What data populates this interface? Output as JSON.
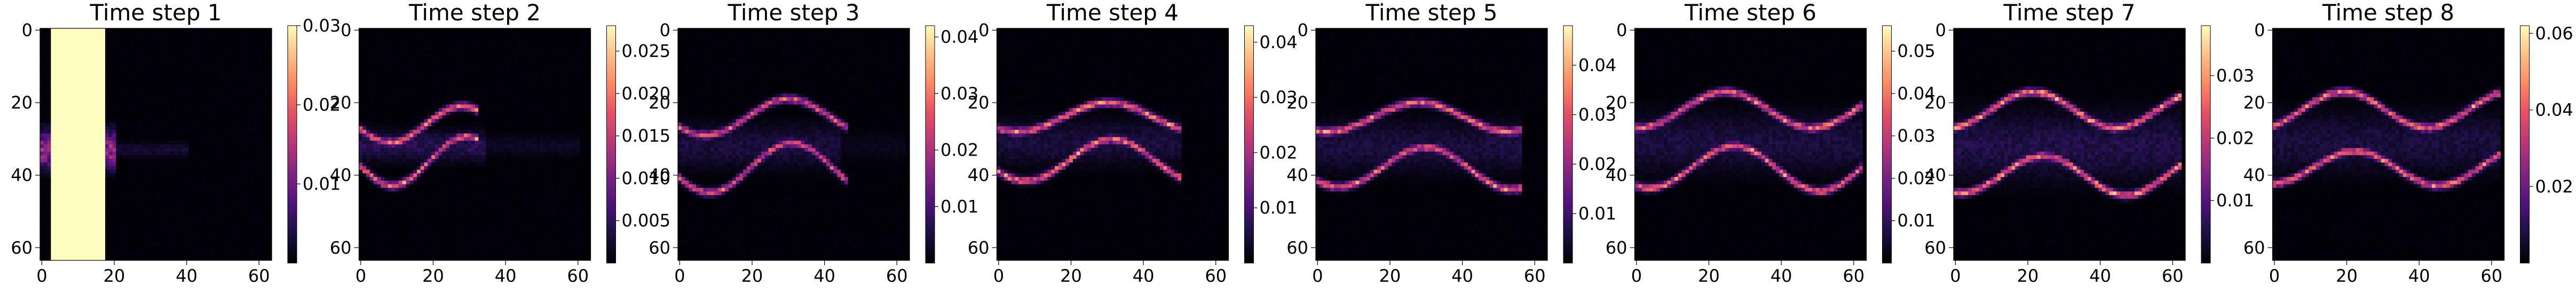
{
  "chart_data": {
    "type": "heatmap",
    "colormap": "magma",
    "grid_size": 64,
    "grid": false,
    "axes": {
      "x_ticks": [
        0,
        20,
        40,
        60
      ],
      "y_ticks": [
        0,
        20,
        40,
        60
      ],
      "x_tick_labels": [
        "0",
        "20",
        "40",
        "60"
      ],
      "y_tick_labels": [
        "0",
        "20",
        "40",
        "60"
      ],
      "x_range": [
        0,
        64
      ],
      "y_range": [
        0,
        64
      ],
      "y_inverted": true
    },
    "panels": [
      {
        "title": "Time step 1",
        "vmax": 0.03,
        "colorbar_ticks": [
          0.01,
          0.02,
          0.03
        ],
        "colorbar_tick_labels": [
          "0.01",
          "0.02",
          "0.03"
        ],
        "features": [
          {
            "kind": "bow",
            "x0": 5,
            "y0": 33,
            "x1": 16,
            "half_height": 5,
            "intensity": 0.95
          },
          {
            "kind": "plume",
            "x0": 0,
            "x1": 20,
            "y": 33,
            "half_height": 5,
            "intensity": 0.55
          },
          {
            "kind": "tail",
            "x0": 16,
            "x1": 40,
            "y": 33,
            "half_height": 2,
            "intensity": 0.12
          }
        ]
      },
      {
        "title": "Time step 2",
        "vmax": 0.028,
        "colorbar_ticks": [
          0.005,
          0.01,
          0.015,
          0.02,
          0.025
        ],
        "colorbar_tick_labels": [
          "0.005",
          "0.010",
          "0.015",
          "0.020",
          "0.025"
        ],
        "features": [
          {
            "kind": "wave",
            "x0": 0,
            "x1": 32,
            "y": 31,
            "amp": 5,
            "period": 40,
            "phase": 0.3,
            "half_gap": 5,
            "intensity": 0.85
          },
          {
            "kind": "plume",
            "x0": 0,
            "x1": 34,
            "y": 32,
            "half_height": 4,
            "intensity": 0.2
          },
          {
            "kind": "tail",
            "x0": 30,
            "x1": 60,
            "y": 32,
            "half_height": 3,
            "intensity": 0.08
          }
        ]
      },
      {
        "title": "Time step 3",
        "vmax": 0.042,
        "colorbar_ticks": [
          0.01,
          0.02,
          0.03,
          0.04
        ],
        "colorbar_tick_labels": [
          "0.01",
          "0.02",
          "0.03",
          "0.04"
        ],
        "features": [
          {
            "kind": "wave",
            "x0": 0,
            "x1": 46,
            "y": 31,
            "amp": 5,
            "period": 46,
            "phase": 0.6,
            "half_gap": 7,
            "intensity": 0.75
          },
          {
            "kind": "plume",
            "x0": 0,
            "x1": 44,
            "y": 32,
            "half_height": 6,
            "intensity": 0.15
          },
          {
            "kind": "tail",
            "x0": 40,
            "x1": 62,
            "y": 32,
            "half_height": 4,
            "intensity": 0.06
          }
        ]
      },
      {
        "title": "Time step 4",
        "vmax": 0.043,
        "colorbar_ticks": [
          0.01,
          0.02,
          0.03,
          0.04
        ],
        "colorbar_tick_labels": [
          "0.01",
          "0.02",
          "0.03",
          "0.04"
        ],
        "features": [
          {
            "kind": "wave",
            "x0": 0,
            "x1": 50,
            "y": 30,
            "amp": 4,
            "period": 50,
            "phase": 0.9,
            "half_gap": 6,
            "intensity": 0.85
          },
          {
            "kind": "plume",
            "x0": 0,
            "x1": 50,
            "y": 31,
            "half_height": 6,
            "intensity": 0.15
          }
        ]
      },
      {
        "title": "Time step 5",
        "vmax": 0.048,
        "colorbar_ticks": [
          0.01,
          0.02,
          0.03,
          0.04
        ],
        "colorbar_tick_labels": [
          "0.01",
          "0.02",
          "0.03",
          "0.04"
        ],
        "features": [
          {
            "kind": "wave",
            "x0": 0,
            "x1": 56,
            "y": 31,
            "amp": 4,
            "period": 50,
            "phase": 1.2,
            "half_gap": 7,
            "intensity": 0.85
          },
          {
            "kind": "plume",
            "x0": 0,
            "x1": 56,
            "y": 32,
            "half_height": 7,
            "intensity": 0.15
          }
        ]
      },
      {
        "title": "Time step 6",
        "vmax": 0.056,
        "colorbar_ticks": [
          0.01,
          0.02,
          0.03,
          0.04,
          0.05
        ],
        "colorbar_tick_labels": [
          "0.01",
          "0.02",
          "0.03",
          "0.04",
          "0.05"
        ],
        "features": [
          {
            "kind": "wave",
            "x0": 0,
            "x1": 62,
            "y": 30,
            "amp": 5,
            "period": 48,
            "phase": 1.5,
            "half_gap": 8,
            "intensity": 0.85
          },
          {
            "kind": "plume",
            "x0": 0,
            "x1": 62,
            "y": 31,
            "half_height": 8,
            "intensity": 0.15
          }
        ]
      },
      {
        "title": "Time step 7",
        "vmax": 0.038,
        "colorbar_ticks": [
          0.01,
          0.02,
          0.03
        ],
        "colorbar_tick_labels": [
          "0.01",
          "0.02",
          "0.03"
        ],
        "features": [
          {
            "kind": "wave",
            "x0": 0,
            "x1": 62,
            "y": 31,
            "amp": 5,
            "period": 46,
            "phase": 1.8,
            "half_gap": 9,
            "intensity": 0.9
          },
          {
            "kind": "plume",
            "x0": 0,
            "x1": 62,
            "y": 32,
            "half_height": 9,
            "intensity": 0.18
          }
        ]
      },
      {
        "title": "Time step 8",
        "vmax": 0.062,
        "colorbar_ticks": [
          0.02,
          0.04,
          0.06
        ],
        "colorbar_tick_labels": [
          "0.02",
          "0.04",
          "0.06"
        ],
        "features": [
          {
            "kind": "wave",
            "x0": 0,
            "x1": 62,
            "y": 30,
            "amp": 5,
            "period": 46,
            "phase": 2.1,
            "half_gap": 8,
            "intensity": 0.85
          },
          {
            "kind": "plume",
            "x0": 0,
            "x1": 62,
            "y": 31,
            "half_height": 8,
            "intensity": 0.15
          }
        ]
      }
    ]
  }
}
